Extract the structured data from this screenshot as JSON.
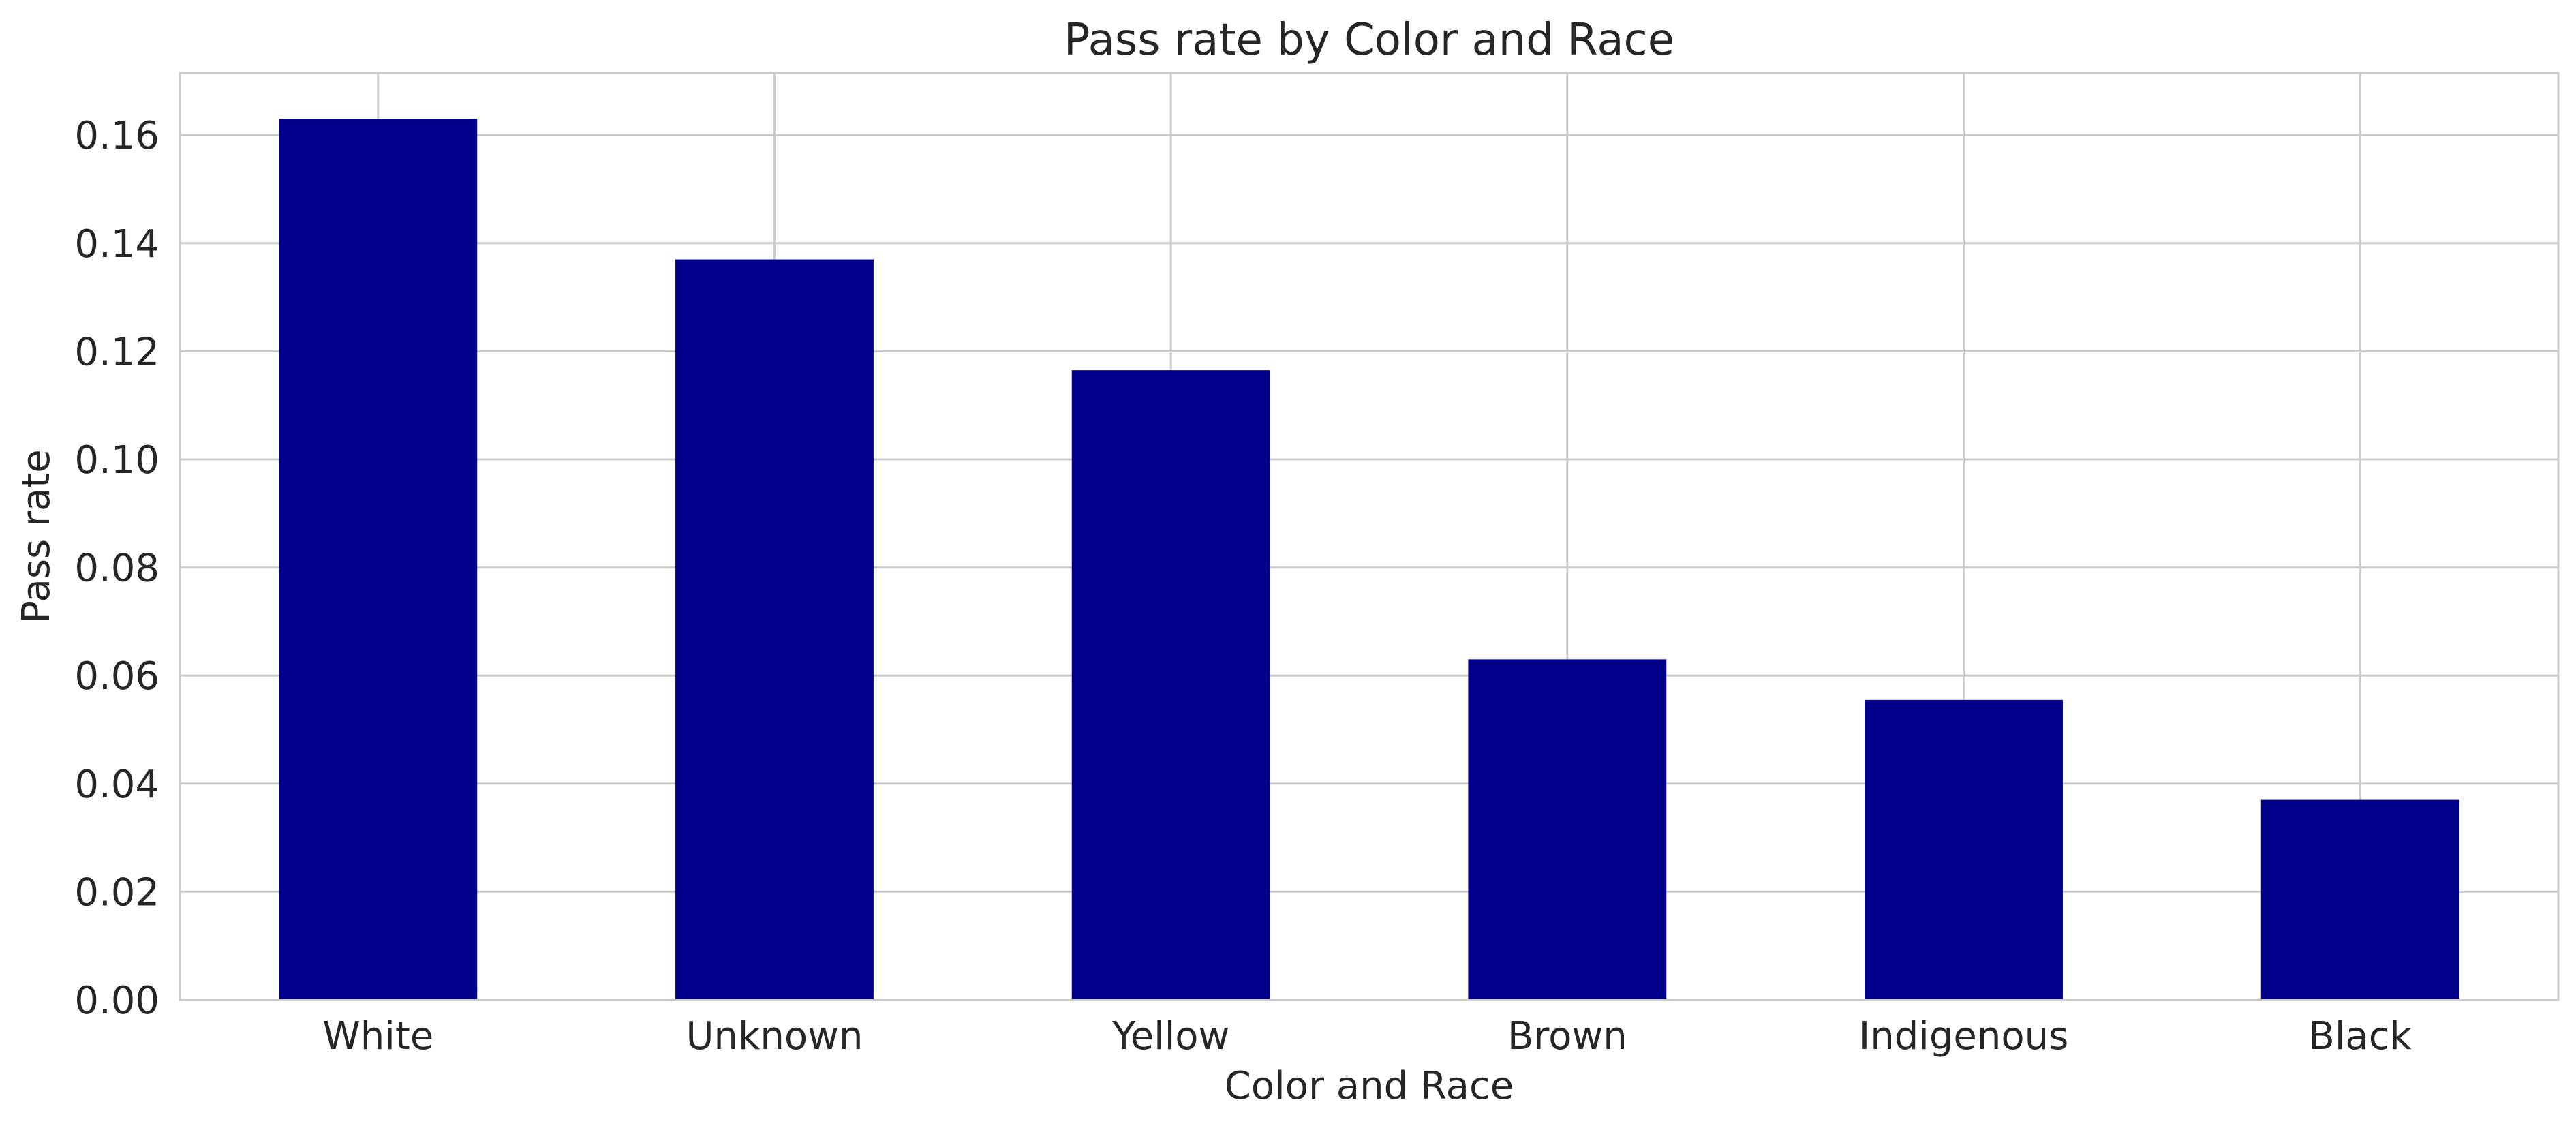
{
  "chart_data": {
    "type": "bar",
    "title": "Pass rate by Color and Race",
    "xlabel": "Color and Race",
    "ylabel": "Pass rate",
    "categories": [
      "White",
      "Unknown",
      "Yellow",
      "Brown",
      "Indigenous",
      "Black"
    ],
    "values": [
      0.163,
      0.137,
      0.1165,
      0.063,
      0.0555,
      0.037
    ],
    "ylim": [
      0,
      0.1715
    ],
    "yticks": [
      0.0,
      0.02,
      0.04,
      0.06,
      0.08,
      0.1,
      0.12,
      0.14,
      0.16
    ],
    "ytick_labels": [
      "0.00",
      "0.02",
      "0.04",
      "0.06",
      "0.08",
      "0.10",
      "0.12",
      "0.14",
      "0.16"
    ],
    "grid": true,
    "bar_color": "#00008b",
    "grid_color": "#cccccc"
  }
}
